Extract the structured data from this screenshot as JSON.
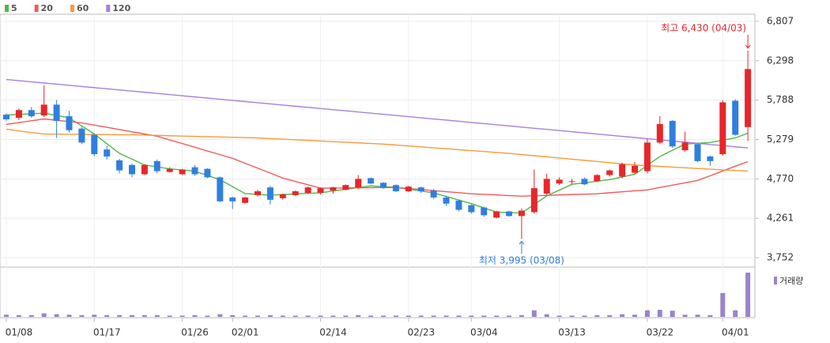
{
  "chart_data": {
    "type": "candlestick",
    "categories": [
      "01/08",
      null,
      null,
      null,
      null,
      null,
      null,
      "01/17",
      null,
      null,
      null,
      null,
      null,
      null,
      "01/26",
      null,
      null,
      null,
      "02/01",
      null,
      null,
      null,
      null,
      null,
      null,
      "02/14",
      null,
      null,
      null,
      null,
      null,
      null,
      "02/23",
      null,
      null,
      null,
      null,
      "03/04",
      null,
      null,
      null,
      null,
      null,
      null,
      "03/13",
      null,
      null,
      null,
      null,
      null,
      null,
      "03/22",
      null,
      null,
      null,
      null,
      null,
      "04/01",
      null,
      null
    ],
    "open": [
      5600,
      5560,
      5660,
      5590,
      5730,
      5580,
      5420,
      5340,
      5150,
      5010,
      4950,
      4830,
      5000,
      4860,
      4830,
      4920,
      4900,
      4790,
      4530,
      4460,
      4560,
      4660,
      4520,
      4560,
      4590,
      4590,
      4620,
      4630,
      4660,
      4780,
      4720,
      4690,
      4610,
      4660,
      4620,
      4530,
      4490,
      4430,
      4400,
      4270,
      4350,
      4290,
      4340,
      4580,
      4710,
      4730,
      4770,
      4740,
      4820,
      4800,
      4850,
      4870,
      5240,
      5520,
      5140,
      5220,
      5060,
      5090,
      5780,
      5440
    ],
    "close": [
      5540,
      5660,
      5580,
      5730,
      5520,
      5400,
      5240,
      5090,
      5060,
      4880,
      4830,
      4950,
      4870,
      4900,
      4890,
      4830,
      4790,
      4480,
      4480,
      4530,
      4610,
      4500,
      4570,
      4610,
      4660,
      4650,
      4660,
      4690,
      4770,
      4710,
      4660,
      4610,
      4670,
      4610,
      4530,
      4450,
      4370,
      4340,
      4300,
      4350,
      4290,
      4360,
      4650,
      4770,
      4760,
      4740,
      4700,
      4820,
      4880,
      4960,
      4940,
      5240,
      5480,
      5190,
      5240,
      5000,
      5000,
      5760,
      5340,
      6190
    ],
    "high": [
      5620,
      5680,
      5700,
      5980,
      5790,
      5650,
      5440,
      5360,
      5200,
      5030,
      4970,
      4960,
      5020,
      4920,
      4900,
      4950,
      4910,
      4800,
      4540,
      4540,
      4630,
      4680,
      4580,
      4620,
      4670,
      4660,
      4670,
      4700,
      4820,
      4790,
      4730,
      4700,
      4680,
      4670,
      4640,
      4550,
      4500,
      4440,
      4410,
      4360,
      4360,
      4390,
      4890,
      4840,
      4790,
      4770,
      4790,
      4830,
      4890,
      4980,
      4990,
      5290,
      5580,
      5530,
      5380,
      5240,
      5070,
      5790,
      5800,
      6430
    ],
    "low": [
      5520,
      5530,
      5560,
      5570,
      5300,
      5370,
      5220,
      5060,
      5020,
      4840,
      4790,
      4820,
      4840,
      4850,
      4820,
      4810,
      4780,
      4470,
      4380,
      4450,
      4540,
      4440,
      4500,
      4550,
      4580,
      4570,
      4580,
      4620,
      4640,
      4700,
      4640,
      4600,
      4600,
      4590,
      4510,
      4420,
      4350,
      4320,
      4280,
      4260,
      4280,
      3995,
      4320,
      4560,
      4690,
      4700,
      4690,
      4730,
      4800,
      4780,
      4830,
      4840,
      5220,
      5170,
      5120,
      4990,
      4940,
      5070,
      5330,
      5260
    ],
    "up_color": "#e8262a",
    "down_color": "#2f7fe0",
    "series": [
      {
        "name": "5",
        "color": "#52b848",
        "values": [
          5596,
          5604,
          5612,
          5620,
          5590,
          5560,
          5455,
          5350,
          5225,
          5100,
          5025,
          4950,
          4925,
          4900,
          4885,
          4870,
          4815,
          4760,
          4670,
          4580,
          4570,
          4560,
          4568,
          4575,
          4583,
          4590,
          4613,
          4635,
          4658,
          4680,
          4670,
          4660,
          4637,
          4613,
          4590,
          4543,
          4497,
          4450,
          4395,
          4340,
          4335,
          4330,
          4440,
          4550,
          4625,
          4700,
          4720,
          4740,
          4760,
          4795,
          4830,
          4945,
          5060,
          5140,
          5220,
          5230,
          5240,
          5270,
          5300,
          5360
        ]
      },
      {
        "name": "20",
        "color": "#ef5b5b",
        "values": [
          5474,
          5498,
          5521,
          5545,
          5528,
          5511,
          5494,
          5465,
          5437,
          5408,
          5379,
          5351,
          5322,
          5274,
          5227,
          5179,
          5131,
          5084,
          5036,
          4972,
          4909,
          4845,
          4781,
          4737,
          4694,
          4650,
          4652,
          4653,
          4655,
          4657,
          4658,
          4660,
          4646,
          4633,
          4619,
          4605,
          4592,
          4578,
          4570,
          4563,
          4555,
          4547,
          4552,
          4557,
          4563,
          4568,
          4573,
          4578,
          4591,
          4603,
          4616,
          4628,
          4659,
          4689,
          4720,
          4750,
          4811,
          4873,
          4934,
          4995
        ]
      },
      {
        "name": "60",
        "color": "#f79a3c",
        "values": [
          5413,
          5390,
          5370,
          5350,
          5349,
          5347,
          5346,
          5344,
          5343,
          5341,
          5340,
          5336,
          5332,
          5328,
          5324,
          5320,
          5316,
          5312,
          5308,
          5304,
          5300,
          5292,
          5284,
          5276,
          5268,
          5260,
          5252,
          5244,
          5236,
          5228,
          5220,
          5208,
          5196,
          5184,
          5172,
          5160,
          5148,
          5136,
          5124,
          5112,
          5100,
          5085,
          5070,
          5055,
          5040,
          5025,
          5010,
          4995,
          4980,
          4965,
          4950,
          4941,
          4932,
          4923,
          4914,
          4905,
          4896,
          4887,
          4878,
          4870
        ]
      },
      {
        "name": "120",
        "color": "#a77fdc",
        "values": [
          6055,
          6040,
          6025,
          6010,
          5995,
          5980,
          5965,
          5950,
          5935,
          5920,
          5905,
          5890,
          5875,
          5860,
          5845,
          5830,
          5815,
          5800,
          5785,
          5770,
          5755,
          5740,
          5725,
          5710,
          5695,
          5680,
          5665,
          5650,
          5635,
          5620,
          5605,
          5590,
          5575,
          5560,
          5545,
          5530,
          5515,
          5500,
          5485,
          5470,
          5455,
          5440,
          5425,
          5410,
          5395,
          5380,
          5365,
          5350,
          5335,
          5320,
          5305,
          5290,
          5275,
          5260,
          5245,
          5230,
          5215,
          5200,
          5185,
          5170
        ]
      }
    ],
    "ylim": [
      3752,
      6807
    ],
    "yticks": [
      {
        "value": 3752,
        "label": "3,752"
      },
      {
        "value": 4261,
        "label": "4,261"
      },
      {
        "value": 4770,
        "label": "4,770"
      },
      {
        "value": 5279,
        "label": "5,279"
      },
      {
        "value": 5788,
        "label": "5,788"
      },
      {
        "value": 6298,
        "label": "6,298"
      },
      {
        "value": 6807,
        "label": "6,807"
      }
    ],
    "grid": true,
    "volume": {
      "name": "거래량",
      "color": "#9a84c8",
      "vlim": [
        0,
        100
      ],
      "values": [
        5,
        4,
        4,
        8,
        6,
        5,
        4,
        5,
        4,
        4,
        4,
        4,
        4,
        3,
        3,
        4,
        3,
        6,
        4,
        3,
        3,
        4,
        3,
        3,
        3,
        3,
        3,
        3,
        4,
        3,
        3,
        3,
        3,
        3,
        3,
        3,
        3,
        3,
        3,
        3,
        3,
        4,
        15,
        6,
        3,
        3,
        3,
        4,
        4,
        6,
        5,
        15,
        16,
        14,
        5,
        5,
        4,
        54,
        15,
        100
      ]
    },
    "annotations": [
      {
        "text": "최고 6,430 (04/03)",
        "color": "#e8262a"
      },
      {
        "text": "최저 3,995 (03/08)",
        "color": "#2f7fe0"
      }
    ]
  }
}
